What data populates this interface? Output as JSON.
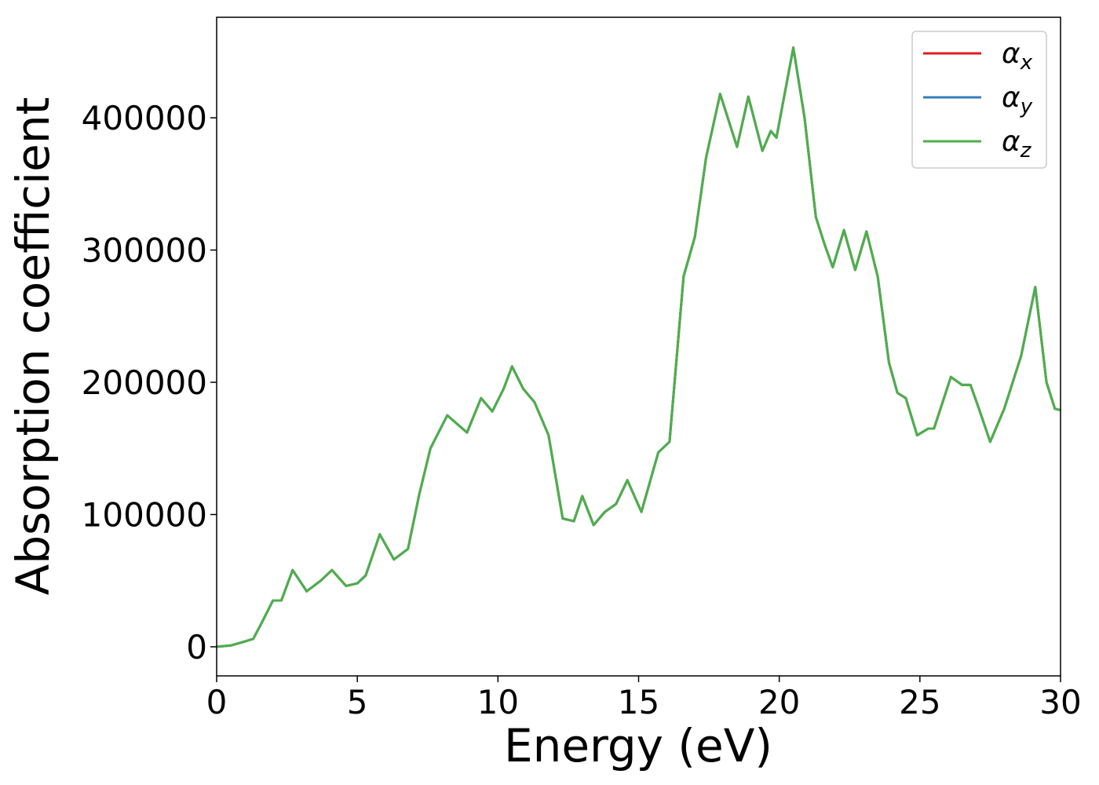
{
  "chart_data": {
    "type": "line",
    "xlabel": "Energy (eV)",
    "ylabel": "Absorption coefficient",
    "x": [
      0,
      0.5,
      1,
      1.3,
      1.6,
      2,
      2.3,
      2.7,
      3.2,
      3.7,
      4.1,
      4.6,
      5,
      5.3,
      5.8,
      6.3,
      6.8,
      7.2,
      7.6,
      8.2,
      8.9,
      9.4,
      9.8,
      10.2,
      10.5,
      10.9,
      11.3,
      11.8,
      12.3,
      12.7,
      13.0,
      13.4,
      13.8,
      14.2,
      14.6,
      15.1,
      15.7,
      16.1,
      16.6,
      17.0,
      17.4,
      17.9,
      18.5,
      18.9,
      19.4,
      19.7,
      19.9,
      20.5,
      20.9,
      21.3,
      21.6,
      21.9,
      22.3,
      22.7,
      23.1,
      23.5,
      23.9,
      24.2,
      24.5,
      24.9,
      25.3,
      25.5,
      26.1,
      26.5,
      26.8,
      27.1,
      27.5,
      28.0,
      28.6,
      29.1,
      29.5,
      29.8,
      30
    ],
    "series": [
      {
        "name": "α_x",
        "color": "#e41a1c",
        "values": [
          0,
          1000,
          4000,
          6000,
          18000,
          35000,
          35000,
          58000,
          42000,
          50000,
          58000,
          46000,
          48000,
          54000,
          85000,
          66000,
          74000,
          115000,
          150000,
          175000,
          162000,
          188000,
          178000,
          195000,
          212000,
          195000,
          185000,
          160000,
          97000,
          95000,
          114000,
          92000,
          102000,
          108000,
          126000,
          102000,
          147000,
          155000,
          280000,
          310000,
          370000,
          418000,
          378000,
          416000,
          375000,
          390000,
          385000,
          453000,
          400000,
          325000,
          305000,
          287000,
          315000,
          285000,
          314000,
          280000,
          215000,
          192000,
          188000,
          160000,
          165000,
          165000,
          204000,
          198000,
          198000,
          180000,
          155000,
          180000,
          220000,
          272000,
          200000,
          180000,
          179000
        ]
      },
      {
        "name": "α_y",
        "color": "#377eb8",
        "values": [
          0,
          1000,
          4000,
          6000,
          18000,
          35000,
          35000,
          58000,
          42000,
          50000,
          58000,
          46000,
          48000,
          54000,
          85000,
          66000,
          74000,
          115000,
          150000,
          175000,
          162000,
          188000,
          178000,
          195000,
          212000,
          195000,
          185000,
          160000,
          97000,
          95000,
          114000,
          92000,
          102000,
          108000,
          126000,
          102000,
          147000,
          155000,
          280000,
          310000,
          370000,
          418000,
          378000,
          416000,
          375000,
          390000,
          385000,
          453000,
          400000,
          325000,
          305000,
          287000,
          315000,
          285000,
          314000,
          280000,
          215000,
          192000,
          188000,
          160000,
          165000,
          165000,
          204000,
          198000,
          198000,
          180000,
          155000,
          180000,
          220000,
          272000,
          200000,
          180000,
          179000
        ]
      },
      {
        "name": "α_z",
        "color": "#4daf4a",
        "values": [
          0,
          1000,
          4000,
          6000,
          18000,
          35000,
          35000,
          58000,
          42000,
          50000,
          58000,
          46000,
          48000,
          54000,
          85000,
          66000,
          74000,
          115000,
          150000,
          175000,
          162000,
          188000,
          178000,
          195000,
          212000,
          195000,
          185000,
          160000,
          97000,
          95000,
          114000,
          92000,
          102000,
          108000,
          126000,
          102000,
          147000,
          155000,
          280000,
          310000,
          370000,
          418000,
          378000,
          416000,
          375000,
          390000,
          385000,
          453000,
          400000,
          325000,
          305000,
          287000,
          315000,
          285000,
          314000,
          280000,
          215000,
          192000,
          188000,
          160000,
          165000,
          165000,
          204000,
          198000,
          198000,
          180000,
          155000,
          180000,
          220000,
          272000,
          200000,
          180000,
          179000
        ]
      }
    ],
    "xlim": [
      0,
      30
    ],
    "xticks": [
      0,
      5,
      10,
      15,
      20,
      25,
      30
    ],
    "ylim": [
      -22000,
      476000
    ],
    "yticks": [
      0,
      100000,
      200000,
      300000,
      400000
    ],
    "grid": false,
    "legend": "upper right"
  }
}
